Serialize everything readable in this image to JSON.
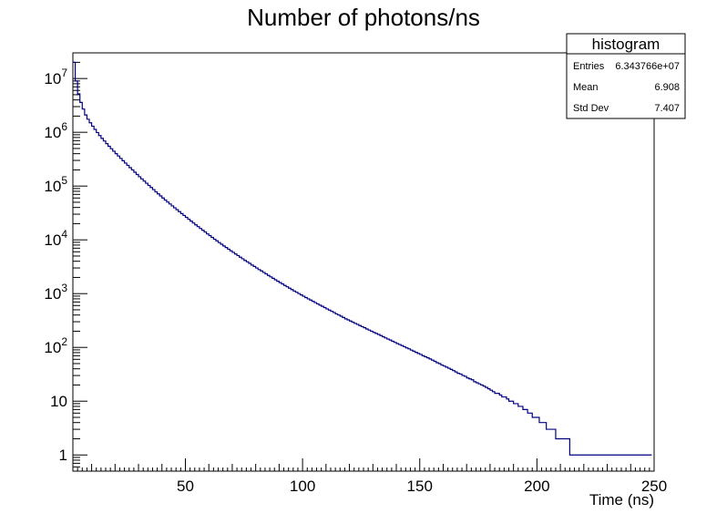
{
  "chart_data": {
    "type": "histogram",
    "title": "Number of photons/ns",
    "xlabel": "Time (ns)",
    "ylabel": "",
    "xlim": [
      2,
      250
    ],
    "ylim_log": [
      0.5,
      30000000
    ],
    "log_y": true,
    "line_color": "#000080",
    "x_ticks": [
      50,
      100,
      150,
      200,
      250
    ],
    "y_ticks": [
      {
        "value": 1,
        "base": "1",
        "exp": ""
      },
      {
        "value": 10,
        "base": "10",
        "exp": ""
      },
      {
        "value": 100,
        "base": "10",
        "exp": "2"
      },
      {
        "value": 1000,
        "base": "10",
        "exp": "3"
      },
      {
        "value": 10000,
        "base": "10",
        "exp": "4"
      },
      {
        "value": 100000,
        "base": "10",
        "exp": "5"
      },
      {
        "value": 1000000,
        "base": "10",
        "exp": "6"
      },
      {
        "value": 10000000,
        "base": "10",
        "exp": "7"
      }
    ],
    "bin_width": 1,
    "x_start": 2,
    "counts": [
      20000000,
      9000000,
      5200000,
      3600000,
      2700000,
      2100000,
      1750000,
      1500000,
      1300000,
      1130000,
      990000,
      870000,
      770000,
      690000,
      615000,
      550000,
      495000,
      445000,
      400000,
      362000,
      327000,
      296000,
      268000,
      243000,
      220000,
      200000,
      181000,
      164000,
      149000,
      136000,
      124000,
      113000,
      103000,
      94000,
      86000,
      78000,
      71500,
      65500,
      60000,
      55000,
      50500,
      46500,
      42800,
      39400,
      36300,
      33400,
      30800,
      28400,
      26200,
      24200,
      22300,
      20600,
      19000,
      17600,
      16300,
      15100,
      14000,
      12900,
      12000,
      11100,
      10300,
      9600,
      8900,
      8300,
      7700,
      7200,
      6700,
      6250,
      5850,
      5450,
      5100,
      4750,
      4450,
      4150,
      3900,
      3650,
      3400,
      3200,
      3000,
      2800,
      2650,
      2480,
      2330,
      2180,
      2050,
      1930,
      1810,
      1700,
      1600,
      1510,
      1420,
      1340,
      1260,
      1190,
      1120,
      1060,
      1000,
      945,
      895,
      845,
      800,
      760,
      720,
      680,
      645,
      610,
      580,
      550,
      520,
      495,
      470,
      445,
      420,
      400,
      380,
      360,
      340,
      325,
      310,
      295,
      280,
      268,
      255,
      243,
      232,
      220,
      210,
      200,
      190,
      182,
      174,
      166,
      158,
      150,
      143,
      137,
      130,
      124,
      118,
      113,
      108,
      103,
      98,
      94,
      89,
      85,
      81,
      77,
      74,
      70,
      67,
      64,
      61,
      58,
      55,
      52,
      50,
      47,
      45,
      43,
      41,
      39,
      37,
      35,
      33,
      32,
      30,
      29,
      27,
      26,
      25,
      23,
      22,
      21,
      20,
      19,
      18,
      17,
      16,
      15,
      14,
      14,
      13,
      12,
      12,
      11,
      10,
      10,
      9,
      9,
      8,
      8,
      7,
      7,
      6,
      6,
      5,
      5,
      5,
      4,
      4,
      4,
      3,
      3,
      3,
      3,
      2,
      2,
      2,
      2,
      2,
      2,
      1,
      1,
      1,
      1,
      1,
      1,
      1,
      1,
      1,
      1,
      1,
      1,
      1,
      1,
      1,
      1,
      1,
      1,
      1,
      1,
      1,
      1,
      1,
      1,
      1,
      1,
      1,
      1,
      1,
      1,
      1,
      1,
      1,
      1,
      1
    ]
  },
  "stats_box": {
    "title": "histogram",
    "rows": [
      {
        "label": "Entries",
        "value": "6.343766e+07"
      },
      {
        "label": "Mean",
        "value": "6.908"
      },
      {
        "label": "Std Dev",
        "value": "7.407"
      }
    ]
  }
}
